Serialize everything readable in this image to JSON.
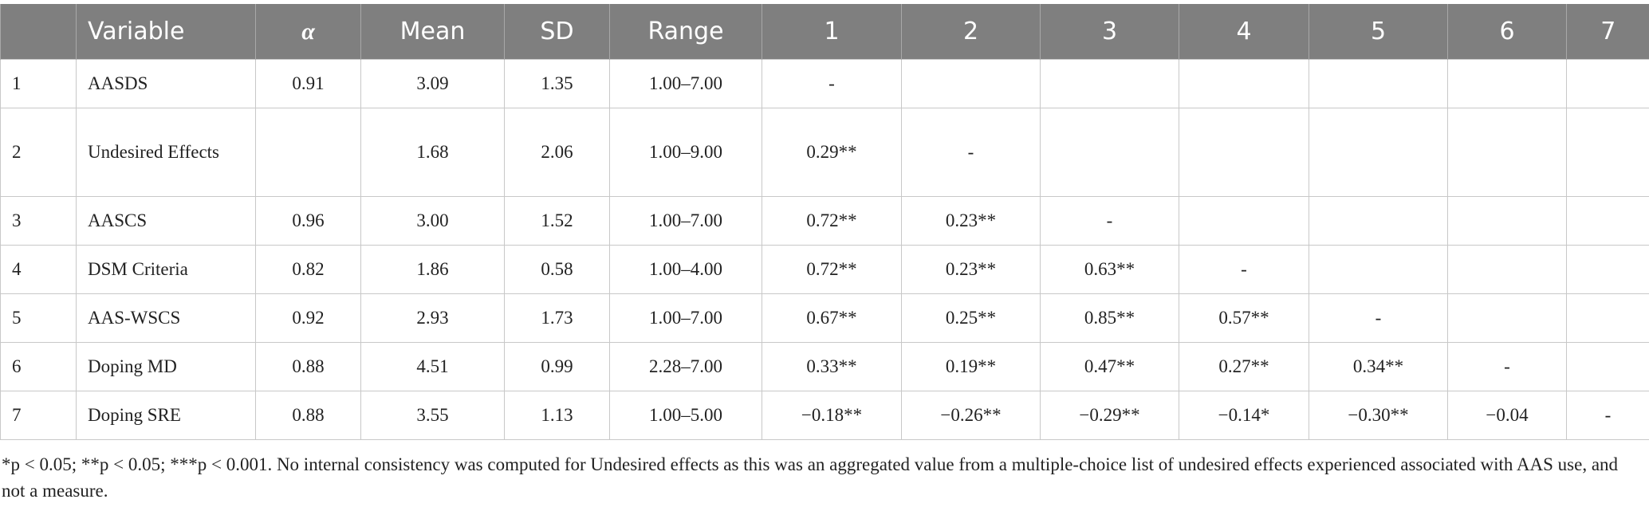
{
  "table": {
    "columns": [
      null,
      "Variable",
      "α",
      "Mean",
      "SD",
      "Range",
      "1",
      "2",
      "3",
      "4",
      "5",
      "6",
      "7"
    ],
    "rows": [
      [
        "1",
        "AASDS",
        "0.91",
        "3.09",
        "1.35",
        "1.00–7.00",
        "-",
        null,
        null,
        null,
        null,
        null,
        null
      ],
      [
        "2",
        "Undesired Effects",
        null,
        "1.68",
        "2.06",
        "1.00–9.00",
        "0.29**",
        "-",
        null,
        null,
        null,
        null,
        null
      ],
      [
        "3",
        "AASCS",
        "0.96",
        "3.00",
        "1.52",
        "1.00–7.00",
        "0.72**",
        "0.23**",
        "-",
        null,
        null,
        null,
        null
      ],
      [
        "4",
        "DSM Criteria",
        "0.82",
        "1.86",
        "0.58",
        "1.00–4.00",
        "0.72**",
        "0.23**",
        "0.63**",
        "-",
        null,
        null,
        null
      ],
      [
        "5",
        "AAS-WSCS",
        "0.92",
        "2.93",
        "1.73",
        "1.00–7.00",
        "0.67**",
        "0.25**",
        "0.85**",
        "0.57**",
        "-",
        null,
        null
      ],
      [
        "6",
        "Doping MD",
        "0.88",
        "4.51",
        "0.99",
        "2.28–7.00",
        "0.33**",
        "0.19**",
        "0.47**",
        "0.27**",
        "0.34**",
        "-",
        null
      ],
      [
        "7",
        "Doping SRE",
        "0.88",
        "3.55",
        "1.13",
        "1.00–5.00",
        "−0.18**",
        "−0.26**",
        "−0.29**",
        "−0.14*",
        "−0.30**",
        "−0.04",
        "-"
      ]
    ],
    "footnote": "*p < 0.05; **p < 0.05; ***p < 0.001. No internal consistency was computed for Undesired effects as this was an aggregated value from a multiple-choice list of undesired effects experienced associated with AAS use, and not a measure."
  }
}
